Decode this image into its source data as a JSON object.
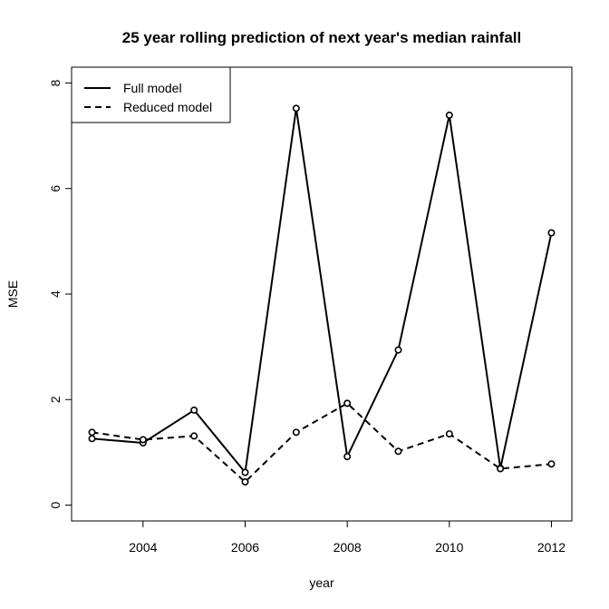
{
  "chart_data": {
    "type": "line",
    "title": "25 year rolling prediction of next year's median rainfall",
    "xlabel": "year",
    "ylabel": "MSE",
    "x": [
      2003,
      2004,
      2005,
      2006,
      2007,
      2008,
      2009,
      2010,
      2011,
      2012
    ],
    "xticks": [
      2004,
      2006,
      2008,
      2010,
      2012
    ],
    "xtick_labels": [
      "2004",
      "2006",
      "2008",
      "2010",
      "2012"
    ],
    "yticks": [
      0,
      2,
      4,
      6,
      8
    ],
    "ytick_labels": [
      "0",
      "2",
      "4",
      "6",
      "8"
    ],
    "xlim": [
      2002.6,
      2012.4
    ],
    "ylim": [
      -0.3,
      8.3
    ],
    "legend_position": "top-left",
    "grid": false,
    "series": [
      {
        "name": "Full model",
        "line_style": "solid",
        "color": "#000000",
        "values": [
          1.26,
          1.18,
          1.8,
          0.62,
          7.52,
          0.92,
          2.94,
          7.39,
          0.7,
          5.16
        ]
      },
      {
        "name": "Reduced model",
        "line_style": "dashed",
        "color": "#000000",
        "values": [
          1.38,
          1.24,
          1.31,
          0.44,
          1.38,
          1.93,
          1.02,
          1.35,
          0.69,
          0.78
        ]
      }
    ]
  }
}
